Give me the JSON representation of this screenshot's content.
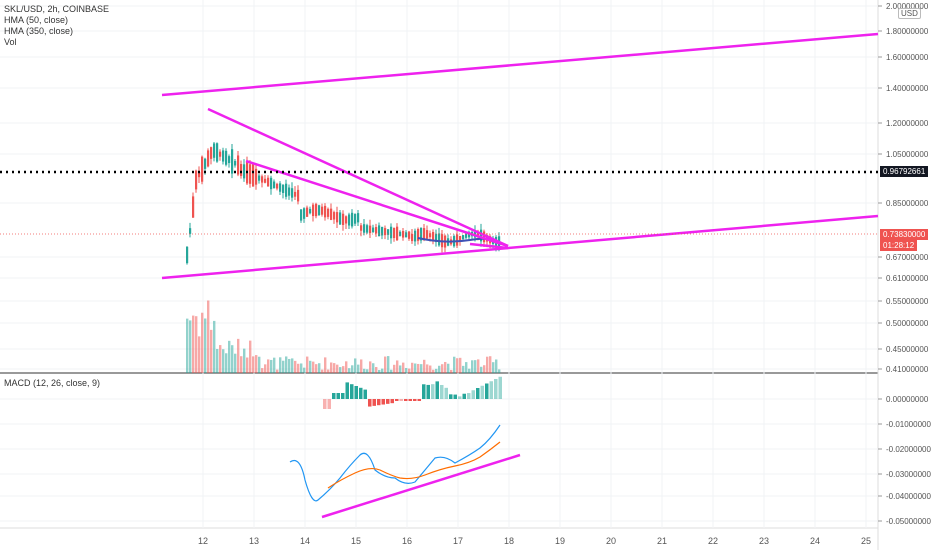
{
  "legend": {
    "symbol": "SKL/USD, 2h, COINBASE",
    "ind1": "HMA (50, close)",
    "ind2": "HMA (350, close)",
    "ind3": "Vol",
    "macd": "MACD (12, 26, close, 9)"
  },
  "currency": "USD",
  "price_axis": {
    "ticks": [
      "2.00000000",
      "1.80000000",
      "1.60000000",
      "1.40000000",
      "1.20000000",
      "1.05000000",
      "0.85000000",
      "0.67000000",
      "0.61000000",
      "0.55000000",
      "0.50000000",
      "0.45000000",
      "0.41000000"
    ],
    "hline_value": "0.96792661",
    "last_price": "0.73830000",
    "countdown": "01:28:12"
  },
  "macd_axis": {
    "ticks": [
      "0.00000000",
      "-0.01000000",
      "-0.02000000",
      "-0.03000000",
      "-0.04000000",
      "-0.05000000"
    ]
  },
  "time_axis": {
    "ticks": [
      "12",
      "13",
      "14",
      "15",
      "16",
      "17",
      "18",
      "19",
      "20",
      "21",
      "22",
      "23",
      "24",
      "25"
    ]
  },
  "colors": {
    "up": "#26a69a",
    "down": "#ef5350",
    "trendline": "#ee22ee",
    "macd": "#2196f3",
    "signal": "#ff6d00",
    "hma": "#3f51b5",
    "last_price": "#ef5350"
  }
}
